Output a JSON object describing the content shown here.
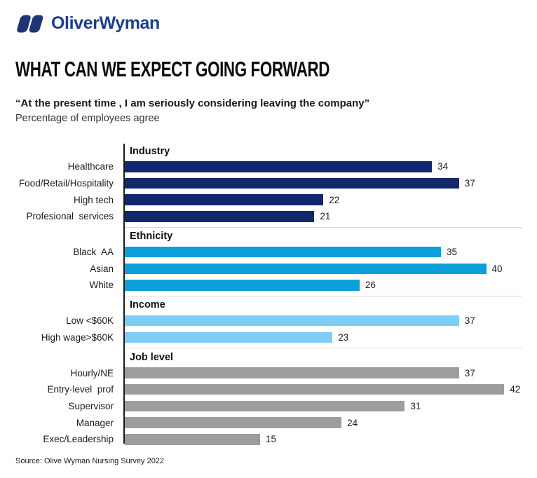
{
  "logo": {
    "text": "OliverWyman",
    "icon": "oliver-wyman-interlocked-links-icon",
    "color": "#1d3e8f",
    "icon_color": "#1e3577"
  },
  "title": "WHAT CAN WE EXPECT GOING FORWARD",
  "quote": "“At the present time , I am seriously considering leaving the company”",
  "subtitle": "Percentage of employees agree",
  "source": "Source: Olive Wyman Nursing Survey 2022",
  "colors": {
    "navy": "#12286B",
    "blue": "#0C9FDC",
    "light_blue": "#7FCDF4",
    "gray": "#9D9D9D",
    "divider": "#D9D9D9",
    "axis": "#1A1A1A"
  },
  "chart_data": {
    "type": "bar",
    "orientation": "horizontal",
    "title": "WHAT CAN WE EXPECT GOING FORWARD",
    "subtitle": "Percentage of employees agree",
    "unit": "percent agree",
    "xlim": [
      0,
      45
    ],
    "grid": false,
    "legend": false,
    "value_labels": "end-of-bar",
    "sections": [
      {
        "header": "Industry",
        "color": "#12286B",
        "categories": [
          "Healthcare",
          "Food/Retail/Hospitality",
          "High tech",
          "Profesional  services"
        ],
        "values": [
          34,
          37,
          22,
          21
        ],
        "divider_after": true
      },
      {
        "header": "Ethnicity",
        "color": "#0C9FDC",
        "categories": [
          "Black  AA",
          "Asian",
          "White"
        ],
        "values": [
          35,
          40,
          26
        ],
        "divider_after": true
      },
      {
        "header": "Income",
        "color": "#7FCDF4",
        "categories": [
          "Low <$60K",
          "High wage>$60K"
        ],
        "values": [
          37,
          23
        ],
        "divider_after": true
      },
      {
        "header": "Job level",
        "color": "#9D9D9D",
        "categories": [
          "Hourly/NE",
          "Entry-level  prof",
          "Supervisor",
          "Manager",
          "Exec/Leadership"
        ],
        "values": [
          37,
          42,
          31,
          24,
          15
        ],
        "divider_after": false
      }
    ]
  }
}
